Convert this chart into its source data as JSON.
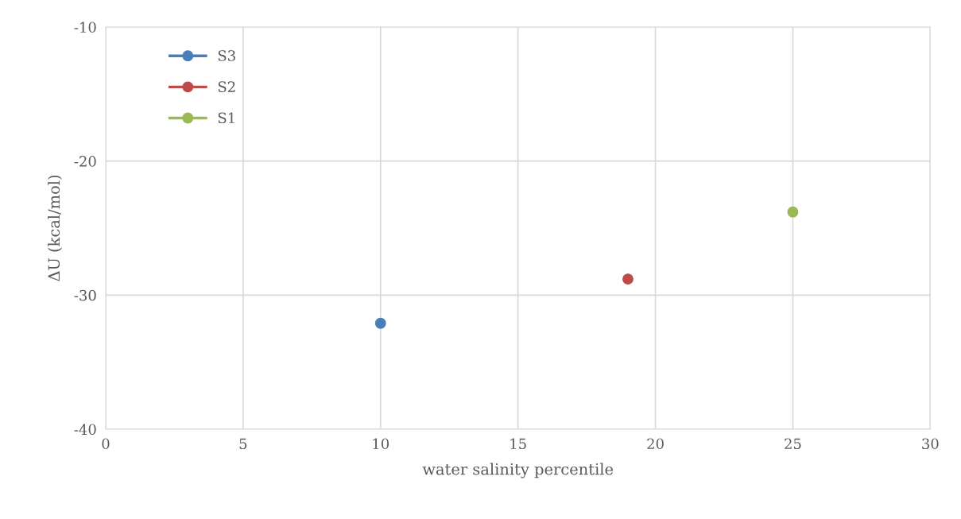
{
  "chart_data": {
    "type": "line",
    "xlabel": "water salinity percentile",
    "ylabel": "ΔU (kcal/mol)",
    "xlim": [
      0,
      30
    ],
    "xticks": [
      0,
      5,
      10,
      15,
      20,
      25,
      30
    ],
    "ylim": [
      -40,
      -10
    ],
    "yticks": [
      -40,
      -30,
      -20,
      -10
    ],
    "grid": true,
    "legend": "top left",
    "marker": "circle",
    "line_style": "solid",
    "series": [
      {
        "name": "S3",
        "color": "#4a7ebb",
        "x": [
          10
        ],
        "values": [
          -32.1
        ]
      },
      {
        "name": "S2",
        "color": "#be4b48",
        "x": [
          19
        ],
        "values": [
          -28.8
        ]
      },
      {
        "name": "S1",
        "color": "#98b954",
        "x": [
          25
        ],
        "values": [
          -23.8
        ]
      }
    ]
  }
}
